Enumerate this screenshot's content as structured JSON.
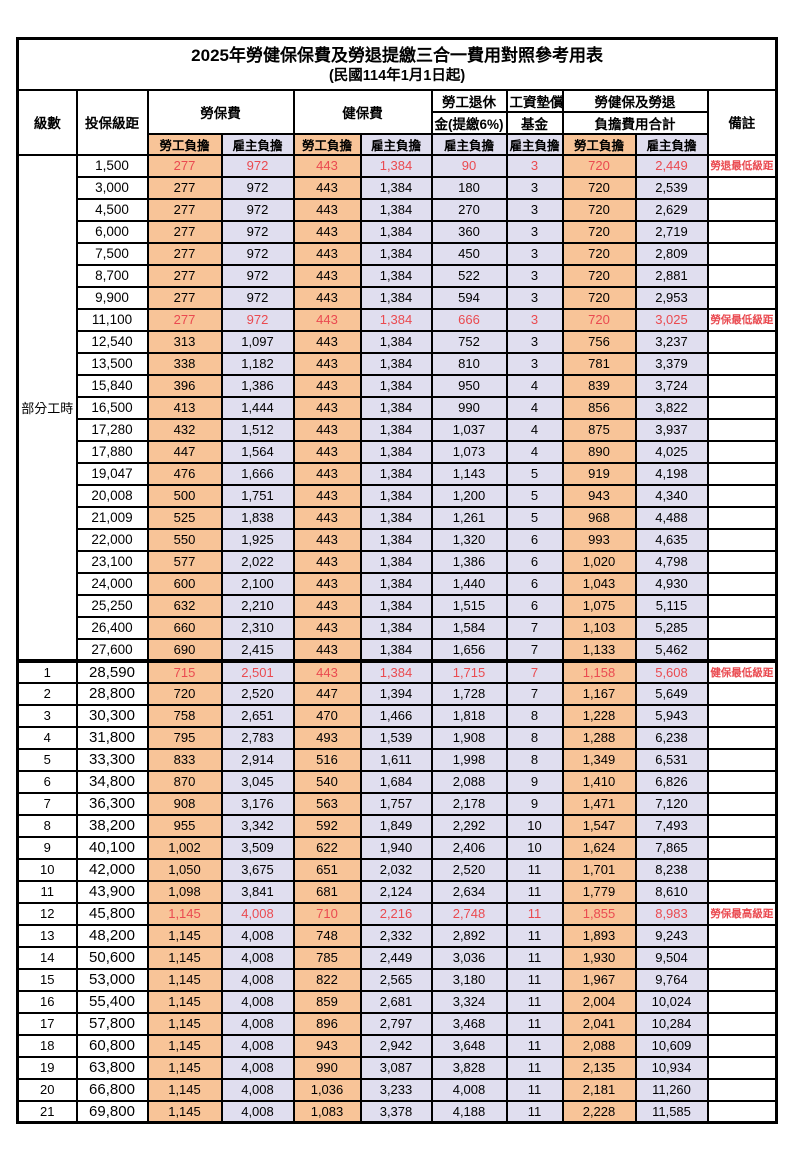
{
  "title": "2025年勞健保保費及勞退提繳三合一費用對照參考用表",
  "subtitle": "(民國114年1月1日起)",
  "colors": {
    "employee_column_bg": "#F8C498",
    "employer_column_bg": "#E0DEEF",
    "highlight_text": "#EA4A50",
    "border": "#000000"
  },
  "header": {
    "level": "級數",
    "bracket": "投保級距",
    "labor_insurance": "勞保費",
    "health_insurance": "健保費",
    "pension_line1": "勞工退休",
    "pension_line2": "金(提繳6%)",
    "wage_fund_line1": "工資墊償",
    "wage_fund_line2": "基金",
    "total_line1": "勞健保及勞退",
    "total_line2": "負擔費用合計",
    "employee": "勞工負擔",
    "employer": "雇主負擔",
    "remark": "備註"
  },
  "part_time_label": "部分工時",
  "part_time_row_count": 23,
  "rows": [
    {
      "level": "",
      "bracket": "1,500",
      "li_emp": "277",
      "li_er": "972",
      "hi_emp": "443",
      "hi_er": "1,384",
      "pension": "90",
      "fund": "3",
      "tot_emp": "720",
      "tot_er": "2,449",
      "remark": "勞退最低級距",
      "highlight": true
    },
    {
      "level": "",
      "bracket": "3,000",
      "li_emp": "277",
      "li_er": "972",
      "hi_emp": "443",
      "hi_er": "1,384",
      "pension": "180",
      "fund": "3",
      "tot_emp": "720",
      "tot_er": "2,539",
      "remark": ""
    },
    {
      "level": "",
      "bracket": "4,500",
      "li_emp": "277",
      "li_er": "972",
      "hi_emp": "443",
      "hi_er": "1,384",
      "pension": "270",
      "fund": "3",
      "tot_emp": "720",
      "tot_er": "2,629",
      "remark": ""
    },
    {
      "level": "",
      "bracket": "6,000",
      "li_emp": "277",
      "li_er": "972",
      "hi_emp": "443",
      "hi_er": "1,384",
      "pension": "360",
      "fund": "3",
      "tot_emp": "720",
      "tot_er": "2,719",
      "remark": ""
    },
    {
      "level": "",
      "bracket": "7,500",
      "li_emp": "277",
      "li_er": "972",
      "hi_emp": "443",
      "hi_er": "1,384",
      "pension": "450",
      "fund": "3",
      "tot_emp": "720",
      "tot_er": "2,809",
      "remark": ""
    },
    {
      "level": "",
      "bracket": "8,700",
      "li_emp": "277",
      "li_er": "972",
      "hi_emp": "443",
      "hi_er": "1,384",
      "pension": "522",
      "fund": "3",
      "tot_emp": "720",
      "tot_er": "2,881",
      "remark": ""
    },
    {
      "level": "",
      "bracket": "9,900",
      "li_emp": "277",
      "li_er": "972",
      "hi_emp": "443",
      "hi_er": "1,384",
      "pension": "594",
      "fund": "3",
      "tot_emp": "720",
      "tot_er": "2,953",
      "remark": ""
    },
    {
      "level": "",
      "bracket": "11,100",
      "li_emp": "277",
      "li_er": "972",
      "hi_emp": "443",
      "hi_er": "1,384",
      "pension": "666",
      "fund": "3",
      "tot_emp": "720",
      "tot_er": "3,025",
      "remark": "勞保最低級距",
      "highlight": true
    },
    {
      "level": "",
      "bracket": "12,540",
      "li_emp": "313",
      "li_er": "1,097",
      "hi_emp": "443",
      "hi_er": "1,384",
      "pension": "752",
      "fund": "3",
      "tot_emp": "756",
      "tot_er": "3,237",
      "remark": ""
    },
    {
      "level": "",
      "bracket": "13,500",
      "li_emp": "338",
      "li_er": "1,182",
      "hi_emp": "443",
      "hi_er": "1,384",
      "pension": "810",
      "fund": "3",
      "tot_emp": "781",
      "tot_er": "3,379",
      "remark": ""
    },
    {
      "level": "",
      "bracket": "15,840",
      "li_emp": "396",
      "li_er": "1,386",
      "hi_emp": "443",
      "hi_er": "1,384",
      "pension": "950",
      "fund": "4",
      "tot_emp": "839",
      "tot_er": "3,724",
      "remark": ""
    },
    {
      "level": "",
      "bracket": "16,500",
      "li_emp": "413",
      "li_er": "1,444",
      "hi_emp": "443",
      "hi_er": "1,384",
      "pension": "990",
      "fund": "4",
      "tot_emp": "856",
      "tot_er": "3,822",
      "remark": ""
    },
    {
      "level": "",
      "bracket": "17,280",
      "li_emp": "432",
      "li_er": "1,512",
      "hi_emp": "443",
      "hi_er": "1,384",
      "pension": "1,037",
      "fund": "4",
      "tot_emp": "875",
      "tot_er": "3,937",
      "remark": ""
    },
    {
      "level": "",
      "bracket": "17,880",
      "li_emp": "447",
      "li_er": "1,564",
      "hi_emp": "443",
      "hi_er": "1,384",
      "pension": "1,073",
      "fund": "4",
      "tot_emp": "890",
      "tot_er": "4,025",
      "remark": ""
    },
    {
      "level": "",
      "bracket": "19,047",
      "li_emp": "476",
      "li_er": "1,666",
      "hi_emp": "443",
      "hi_er": "1,384",
      "pension": "1,143",
      "fund": "5",
      "tot_emp": "919",
      "tot_er": "4,198",
      "remark": ""
    },
    {
      "level": "",
      "bracket": "20,008",
      "li_emp": "500",
      "li_er": "1,751",
      "hi_emp": "443",
      "hi_er": "1,384",
      "pension": "1,200",
      "fund": "5",
      "tot_emp": "943",
      "tot_er": "4,340",
      "remark": ""
    },
    {
      "level": "",
      "bracket": "21,009",
      "li_emp": "525",
      "li_er": "1,838",
      "hi_emp": "443",
      "hi_er": "1,384",
      "pension": "1,261",
      "fund": "5",
      "tot_emp": "968",
      "tot_er": "4,488",
      "remark": ""
    },
    {
      "level": "",
      "bracket": "22,000",
      "li_emp": "550",
      "li_er": "1,925",
      "hi_emp": "443",
      "hi_er": "1,384",
      "pension": "1,320",
      "fund": "6",
      "tot_emp": "993",
      "tot_er": "4,635",
      "remark": ""
    },
    {
      "level": "",
      "bracket": "23,100",
      "li_emp": "577",
      "li_er": "2,022",
      "hi_emp": "443",
      "hi_er": "1,384",
      "pension": "1,386",
      "fund": "6",
      "tot_emp": "1,020",
      "tot_er": "4,798",
      "remark": ""
    },
    {
      "level": "",
      "bracket": "24,000",
      "li_emp": "600",
      "li_er": "2,100",
      "hi_emp": "443",
      "hi_er": "1,384",
      "pension": "1,440",
      "fund": "6",
      "tot_emp": "1,043",
      "tot_er": "4,930",
      "remark": ""
    },
    {
      "level": "",
      "bracket": "25,250",
      "li_emp": "632",
      "li_er": "2,210",
      "hi_emp": "443",
      "hi_er": "1,384",
      "pension": "1,515",
      "fund": "6",
      "tot_emp": "1,075",
      "tot_er": "5,115",
      "remark": ""
    },
    {
      "level": "",
      "bracket": "26,400",
      "li_emp": "660",
      "li_er": "2,310",
      "hi_emp": "443",
      "hi_er": "1,384",
      "pension": "1,584",
      "fund": "7",
      "tot_emp": "1,103",
      "tot_er": "5,285",
      "remark": ""
    },
    {
      "level": "",
      "bracket": "27,600",
      "li_emp": "690",
      "li_er": "2,415",
      "hi_emp": "443",
      "hi_er": "1,384",
      "pension": "1,656",
      "fund": "7",
      "tot_emp": "1,133",
      "tot_er": "5,462",
      "remark": ""
    },
    {
      "level": "1",
      "bracket": "28,590",
      "li_emp": "715",
      "li_er": "2,501",
      "hi_emp": "443",
      "hi_er": "1,384",
      "pension": "1,715",
      "fund": "7",
      "tot_emp": "1,158",
      "tot_er": "5,608",
      "remark": "健保最低級距",
      "highlight": true,
      "thick_top": true
    },
    {
      "level": "2",
      "bracket": "28,800",
      "li_emp": "720",
      "li_er": "2,520",
      "hi_emp": "447",
      "hi_er": "1,394",
      "pension": "1,728",
      "fund": "7",
      "tot_emp": "1,167",
      "tot_er": "5,649",
      "remark": ""
    },
    {
      "level": "3",
      "bracket": "30,300",
      "li_emp": "758",
      "li_er": "2,651",
      "hi_emp": "470",
      "hi_er": "1,466",
      "pension": "1,818",
      "fund": "8",
      "tot_emp": "1,228",
      "tot_er": "5,943",
      "remark": ""
    },
    {
      "level": "4",
      "bracket": "31,800",
      "li_emp": "795",
      "li_er": "2,783",
      "hi_emp": "493",
      "hi_er": "1,539",
      "pension": "1,908",
      "fund": "8",
      "tot_emp": "1,288",
      "tot_er": "6,238",
      "remark": ""
    },
    {
      "level": "5",
      "bracket": "33,300",
      "li_emp": "833",
      "li_er": "2,914",
      "hi_emp": "516",
      "hi_er": "1,611",
      "pension": "1,998",
      "fund": "8",
      "tot_emp": "1,349",
      "tot_er": "6,531",
      "remark": ""
    },
    {
      "level": "6",
      "bracket": "34,800",
      "li_emp": "870",
      "li_er": "3,045",
      "hi_emp": "540",
      "hi_er": "1,684",
      "pension": "2,088",
      "fund": "9",
      "tot_emp": "1,410",
      "tot_er": "6,826",
      "remark": ""
    },
    {
      "level": "7",
      "bracket": "36,300",
      "li_emp": "908",
      "li_er": "3,176",
      "hi_emp": "563",
      "hi_er": "1,757",
      "pension": "2,178",
      "fund": "9",
      "tot_emp": "1,471",
      "tot_er": "7,120",
      "remark": ""
    },
    {
      "level": "8",
      "bracket": "38,200",
      "li_emp": "955",
      "li_er": "3,342",
      "hi_emp": "592",
      "hi_er": "1,849",
      "pension": "2,292",
      "fund": "10",
      "tot_emp": "1,547",
      "tot_er": "7,493",
      "remark": ""
    },
    {
      "level": "9",
      "bracket": "40,100",
      "li_emp": "1,002",
      "li_er": "3,509",
      "hi_emp": "622",
      "hi_er": "1,940",
      "pension": "2,406",
      "fund": "10",
      "tot_emp": "1,624",
      "tot_er": "7,865",
      "remark": ""
    },
    {
      "level": "10",
      "bracket": "42,000",
      "li_emp": "1,050",
      "li_er": "3,675",
      "hi_emp": "651",
      "hi_er": "2,032",
      "pension": "2,520",
      "fund": "11",
      "tot_emp": "1,701",
      "tot_er": "8,238",
      "remark": ""
    },
    {
      "level": "11",
      "bracket": "43,900",
      "li_emp": "1,098",
      "li_er": "3,841",
      "hi_emp": "681",
      "hi_er": "2,124",
      "pension": "2,634",
      "fund": "11",
      "tot_emp": "1,779",
      "tot_er": "8,610",
      "remark": ""
    },
    {
      "level": "12",
      "bracket": "45,800",
      "li_emp": "1,145",
      "li_er": "4,008",
      "hi_emp": "710",
      "hi_er": "2,216",
      "pension": "2,748",
      "fund": "11",
      "tot_emp": "1,855",
      "tot_er": "8,983",
      "remark": "勞保最高級距",
      "highlight": true
    },
    {
      "level": "13",
      "bracket": "48,200",
      "li_emp": "1,145",
      "li_er": "4,008",
      "hi_emp": "748",
      "hi_er": "2,332",
      "pension": "2,892",
      "fund": "11",
      "tot_emp": "1,893",
      "tot_er": "9,243",
      "remark": ""
    },
    {
      "level": "14",
      "bracket": "50,600",
      "li_emp": "1,145",
      "li_er": "4,008",
      "hi_emp": "785",
      "hi_er": "2,449",
      "pension": "3,036",
      "fund": "11",
      "tot_emp": "1,930",
      "tot_er": "9,504",
      "remark": ""
    },
    {
      "level": "15",
      "bracket": "53,000",
      "li_emp": "1,145",
      "li_er": "4,008",
      "hi_emp": "822",
      "hi_er": "2,565",
      "pension": "3,180",
      "fund": "11",
      "tot_emp": "1,967",
      "tot_er": "9,764",
      "remark": ""
    },
    {
      "level": "16",
      "bracket": "55,400",
      "li_emp": "1,145",
      "li_er": "4,008",
      "hi_emp": "859",
      "hi_er": "2,681",
      "pension": "3,324",
      "fund": "11",
      "tot_emp": "2,004",
      "tot_er": "10,024",
      "remark": ""
    },
    {
      "level": "17",
      "bracket": "57,800",
      "li_emp": "1,145",
      "li_er": "4,008",
      "hi_emp": "896",
      "hi_er": "2,797",
      "pension": "3,468",
      "fund": "11",
      "tot_emp": "2,041",
      "tot_er": "10,284",
      "remark": ""
    },
    {
      "level": "18",
      "bracket": "60,800",
      "li_emp": "1,145",
      "li_er": "4,008",
      "hi_emp": "943",
      "hi_er": "2,942",
      "pension": "3,648",
      "fund": "11",
      "tot_emp": "2,088",
      "tot_er": "10,609",
      "remark": ""
    },
    {
      "level": "19",
      "bracket": "63,800",
      "li_emp": "1,145",
      "li_er": "4,008",
      "hi_emp": "990",
      "hi_er": "3,087",
      "pension": "3,828",
      "fund": "11",
      "tot_emp": "2,135",
      "tot_er": "10,934",
      "remark": ""
    },
    {
      "level": "20",
      "bracket": "66,800",
      "li_emp": "1,145",
      "li_er": "4,008",
      "hi_emp": "1,036",
      "hi_er": "3,233",
      "pension": "4,008",
      "fund": "11",
      "tot_emp": "2,181",
      "tot_er": "11,260",
      "remark": ""
    },
    {
      "level": "21",
      "bracket": "69,800",
      "li_emp": "1,145",
      "li_er": "4,008",
      "hi_emp": "1,083",
      "hi_er": "3,378",
      "pension": "4,188",
      "fund": "11",
      "tot_emp": "2,228",
      "tot_er": "11,585",
      "remark": ""
    }
  ]
}
